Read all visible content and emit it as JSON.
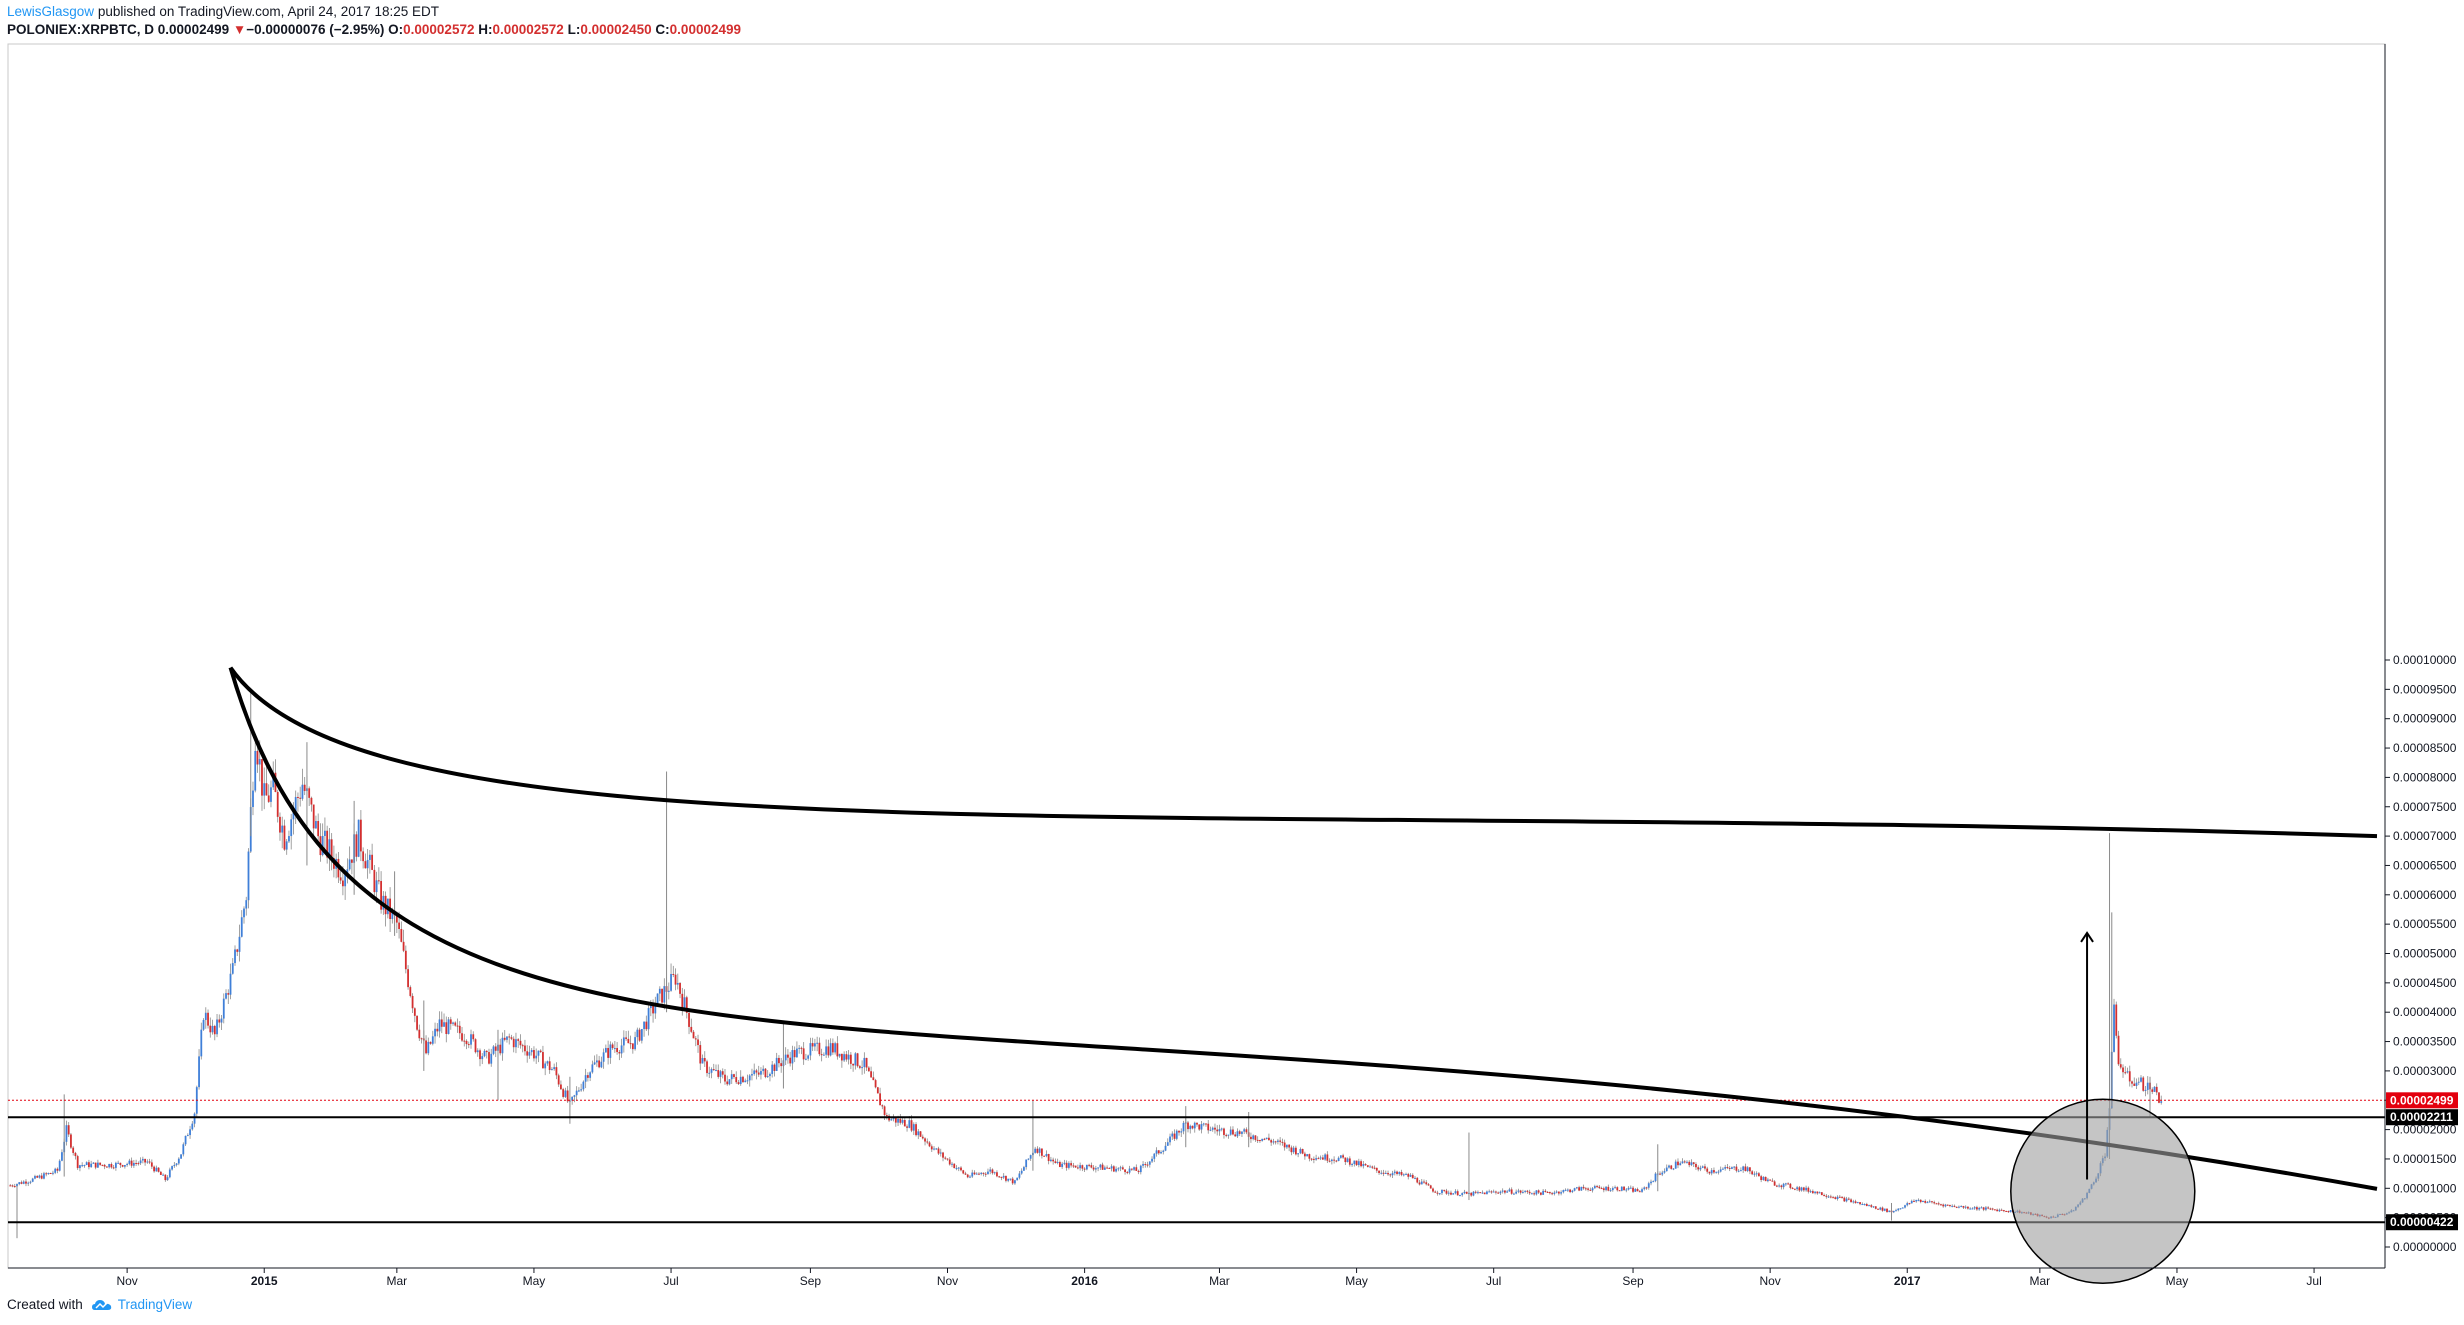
{
  "header": {
    "author": "LewisGlasgow",
    "published": "published on TradingView.com, April 24, 2017 18:25 EDT",
    "symbol": "POLONIEX:XRPBTC, D",
    "price": "0.00002499",
    "change": "−0.00000076 (−2.95%)",
    "o_label": "O:",
    "o_value": "0.00002572",
    "h_label": "H:",
    "h_value": "0.00002572",
    "l_label": "L:",
    "l_value": "0.00002450",
    "c_label": "C:",
    "c_value": "0.00002499"
  },
  "footer": {
    "created_with": "Created with",
    "brand": "TradingView"
  },
  "chart_data": {
    "type": "candlestick",
    "symbol": "POLONIEX:XRPBTC",
    "interval": "D",
    "ylim": [
      0.0,
      0.0001
    ],
    "y_ticks": [
      "0.00010000",
      "0.00009500",
      "0.00009000",
      "0.00008500",
      "0.00008000",
      "0.00007500",
      "0.00007000",
      "0.00006500",
      "0.00006000",
      "0.00005500",
      "0.00005000",
      "0.00004500",
      "0.00004000",
      "0.00003500",
      "0.00003000",
      "0.00002500",
      "0.00002000",
      "0.00001500",
      "0.00001000",
      "0.00000500",
      "0.00000000"
    ],
    "x_ticks": [
      {
        "label": "Nov",
        "date": "2014-11-01",
        "bold": false
      },
      {
        "label": "2015",
        "date": "2015-01-01",
        "bold": true
      },
      {
        "label": "Mar",
        "date": "2015-03-01",
        "bold": false
      },
      {
        "label": "May",
        "date": "2015-05-01",
        "bold": false
      },
      {
        "label": "Jul",
        "date": "2015-07-01",
        "bold": false
      },
      {
        "label": "Sep",
        "date": "2015-09-01",
        "bold": false
      },
      {
        "label": "Nov",
        "date": "2015-11-01",
        "bold": false
      },
      {
        "label": "2016",
        "date": "2016-01-01",
        "bold": true
      },
      {
        "label": "Mar",
        "date": "2016-03-01",
        "bold": false
      },
      {
        "label": "May",
        "date": "2016-05-01",
        "bold": false
      },
      {
        "label": "Jul",
        "date": "2016-07-01",
        "bold": false
      },
      {
        "label": "Sep",
        "date": "2016-09-01",
        "bold": false
      },
      {
        "label": "Nov",
        "date": "2016-11-01",
        "bold": false
      },
      {
        "label": "2017",
        "date": "2017-01-01",
        "bold": true
      },
      {
        "label": "Mar",
        "date": "2017-03-01",
        "bold": false
      },
      {
        "label": "May",
        "date": "2017-05-01",
        "bold": false
      },
      {
        "label": "Jul",
        "date": "2017-07-01",
        "bold": false
      }
    ],
    "x_range": [
      "2014-09-09",
      "2017-07-29"
    ],
    "close_path": [
      [
        "2014-09-10",
        1.05e-05
      ],
      [
        "2014-09-20",
        1.15e-05
      ],
      [
        "2014-10-01",
        1.3e-05
      ],
      [
        "2014-10-05",
        2e-05
      ],
      [
        "2014-10-10",
        1.4e-05
      ],
      [
        "2014-10-25",
        1.4e-05
      ],
      [
        "2014-11-10",
        1.45e-05
      ],
      [
        "2014-11-18",
        1.15e-05
      ],
      [
        "2014-11-25",
        1.6e-05
      ],
      [
        "2014-12-01",
        2.3e-05
      ],
      [
        "2014-12-05",
        4e-05
      ],
      [
        "2014-12-10",
        3.6e-05
      ],
      [
        "2014-12-18",
        4.7e-05
      ],
      [
        "2014-12-24",
        6e-05
      ],
      [
        "2014-12-28",
        8.8e-05
      ],
      [
        "2015-01-01",
        7.6e-05
      ],
      [
        "2015-01-05",
        7.8e-05
      ],
      [
        "2015-01-10",
        7e-05
      ],
      [
        "2015-01-18",
        7.9e-05
      ],
      [
        "2015-01-25",
        7e-05
      ],
      [
        "2015-02-05",
        6.4e-05
      ],
      [
        "2015-02-12",
        7e-05
      ],
      [
        "2015-02-22",
        5.9e-05
      ],
      [
        "2015-03-01",
        5.5e-05
      ],
      [
        "2015-03-10",
        3.8e-05
      ],
      [
        "2015-03-14",
        3.3e-05
      ],
      [
        "2015-03-20",
        3.8e-05
      ],
      [
        "2015-04-01",
        3.6e-05
      ],
      [
        "2015-04-10",
        3.2e-05
      ],
      [
        "2015-04-20",
        3.55e-05
      ],
      [
        "2015-05-01",
        3.3e-05
      ],
      [
        "2015-05-10",
        3e-05
      ],
      [
        "2015-05-17",
        2.4e-05
      ],
      [
        "2015-05-25",
        3e-05
      ],
      [
        "2015-06-05",
        3.4e-05
      ],
      [
        "2015-06-15",
        3.5e-05
      ],
      [
        "2015-06-25",
        4.2e-05
      ],
      [
        "2015-07-03",
        4.6e-05
      ],
      [
        "2015-07-08",
        4e-05
      ],
      [
        "2015-07-15",
        3.1e-05
      ],
      [
        "2015-07-25",
        2.85e-05
      ],
      [
        "2015-08-10",
        2.95e-05
      ],
      [
        "2015-08-25",
        3.3e-05
      ],
      [
        "2015-09-10",
        3.4e-05
      ],
      [
        "2015-09-25",
        3.1e-05
      ],
      [
        "2015-10-05",
        2.2e-05
      ],
      [
        "2015-10-15",
        2.1e-05
      ],
      [
        "2015-10-28",
        1.6e-05
      ],
      [
        "2015-11-10",
        1.2e-05
      ],
      [
        "2015-11-20",
        1.3e-05
      ],
      [
        "2015-12-01",
        1.1e-05
      ],
      [
        "2015-12-10",
        1.7e-05
      ],
      [
        "2015-12-20",
        1.4e-05
      ],
      [
        "2016-01-10",
        1.35e-05
      ],
      [
        "2016-01-25",
        1.3e-05
      ],
      [
        "2016-02-05",
        1.7e-05
      ],
      [
        "2016-02-15",
        2.1e-05
      ],
      [
        "2016-02-28",
        2e-05
      ],
      [
        "2016-03-10",
        1.95e-05
      ],
      [
        "2016-03-25",
        1.8e-05
      ],
      [
        "2016-04-10",
        1.55e-05
      ],
      [
        "2016-04-25",
        1.5e-05
      ],
      [
        "2016-05-10",
        1.3e-05
      ],
      [
        "2016-05-25",
        1.2e-05
      ],
      [
        "2016-06-05",
        9.5e-06
      ],
      [
        "2016-06-20",
        9e-06
      ],
      [
        "2016-07-05",
        9.5e-06
      ],
      [
        "2016-07-25",
        9.2e-06
      ],
      [
        "2016-08-10",
        1e-05
      ],
      [
        "2016-08-25",
        1e-05
      ],
      [
        "2016-09-05",
        9.5e-06
      ],
      [
        "2016-09-12",
        1.25e-05
      ],
      [
        "2016-09-22",
        1.45e-05
      ],
      [
        "2016-10-05",
        1.3e-05
      ],
      [
        "2016-10-20",
        1.35e-05
      ],
      [
        "2016-11-01",
        1.1e-05
      ],
      [
        "2016-11-20",
        9.5e-06
      ],
      [
        "2016-12-10",
        7.5e-06
      ],
      [
        "2016-12-25",
        6e-06
      ],
      [
        "2017-01-05",
        8e-06
      ],
      [
        "2017-01-20",
        7e-06
      ],
      [
        "2017-02-05",
        6.5e-06
      ],
      [
        "2017-02-20",
        6e-06
      ],
      [
        "2017-03-05",
        5e-06
      ],
      [
        "2017-03-15",
        6e-06
      ],
      [
        "2017-03-20",
        8e-06
      ],
      [
        "2017-03-25",
        1.1e-05
      ],
      [
        "2017-03-30",
        1.6e-05
      ],
      [
        "2017-04-01",
        2.4e-05
      ],
      [
        "2017-04-03",
        4e-05
      ],
      [
        "2017-04-05",
        3.2e-05
      ],
      [
        "2017-04-08",
        2.9e-05
      ],
      [
        "2017-04-14",
        2.8e-05
      ],
      [
        "2017-04-20",
        2.7e-05
      ],
      [
        "2017-04-24",
        2.5e-05
      ]
    ],
    "wicks": [
      {
        "date": "2014-09-13",
        "high": 1.05e-05,
        "low": 1.5e-06
      },
      {
        "date": "2014-10-04",
        "high": 2.6e-05,
        "low": 1.2e-05
      },
      {
        "date": "2014-12-26",
        "high": 9.5e-05,
        "low": 7e-05
      },
      {
        "date": "2015-01-20",
        "high": 8.6e-05,
        "low": 6.5e-05
      },
      {
        "date": "2015-02-10",
        "high": 7.6e-05,
        "low": 6e-05
      },
      {
        "date": "2015-02-28",
        "high": 6.4e-05,
        "low": 5.3e-05
      },
      {
        "date": "2015-03-13",
        "high": 4.2e-05,
        "low": 3e-05
      },
      {
        "date": "2015-04-15",
        "high": 3.7e-05,
        "low": 2.5e-05
      },
      {
        "date": "2015-05-17",
        "high": 2.9e-05,
        "low": 2.1e-05
      },
      {
        "date": "2015-06-29",
        "high": 8.1e-05,
        "low": 4e-05
      },
      {
        "date": "2015-08-20",
        "high": 3.85e-05,
        "low": 2.7e-05
      },
      {
        "date": "2015-12-09",
        "high": 2.5e-05,
        "low": 1.3e-05
      },
      {
        "date": "2016-02-15",
        "high": 2.4e-05,
        "low": 1.7e-05
      },
      {
        "date": "2016-03-14",
        "high": 2.3e-05,
        "low": 1.7e-05
      },
      {
        "date": "2016-06-20",
        "high": 1.95e-05,
        "low": 8e-06
      },
      {
        "date": "2016-09-12",
        "high": 1.75e-05,
        "low": 9.5e-06
      },
      {
        "date": "2016-12-25",
        "high": 7.5e-06,
        "low": 4.5e-06
      },
      {
        "date": "2017-04-01",
        "high": 7.05e-05,
        "low": 1.5e-05
      },
      {
        "date": "2017-04-02",
        "high": 5.7e-05,
        "low": 2.4e-05
      },
      {
        "date": "2017-04-19",
        "high": 2.9e-05,
        "low": 2.2e-05
      }
    ],
    "horizontal_lines": [
      {
        "price": 2.211e-05,
        "label": "0.00002211",
        "color": "#000000"
      },
      {
        "price": 4.22e-06,
        "label": "0.00000422",
        "color": "#000000"
      }
    ],
    "last_price": {
      "price": 2.499e-05,
      "label": "0.00002499",
      "color": "#e3000e"
    },
    "annotations": {
      "upper_arc": {
        "from": [
          "2014-12-17",
          9.87e-05
        ],
        "to": [
          "2017-07-29",
          7e-05
        ],
        "stroke": "#000000"
      },
      "lower_arc": {
        "from": [
          "2014-12-17",
          9.87e-05
        ],
        "to": [
          "2017-07-29",
          9.9e-06
        ],
        "stroke": "#000000"
      },
      "arrow": {
        "date": "2017-03-22",
        "from": 1.15e-05,
        "to": 5.35e-05
      },
      "circle": {
        "center": [
          "2017-03-29",
          9.5e-06
        ],
        "fill": "#9e9e9e"
      }
    },
    "colors": {
      "up": "#3f7fd8",
      "down": "#d32f2f",
      "wick": "#8a8a8a",
      "grid": "#ffffff",
      "axis": "#131722"
    }
  }
}
